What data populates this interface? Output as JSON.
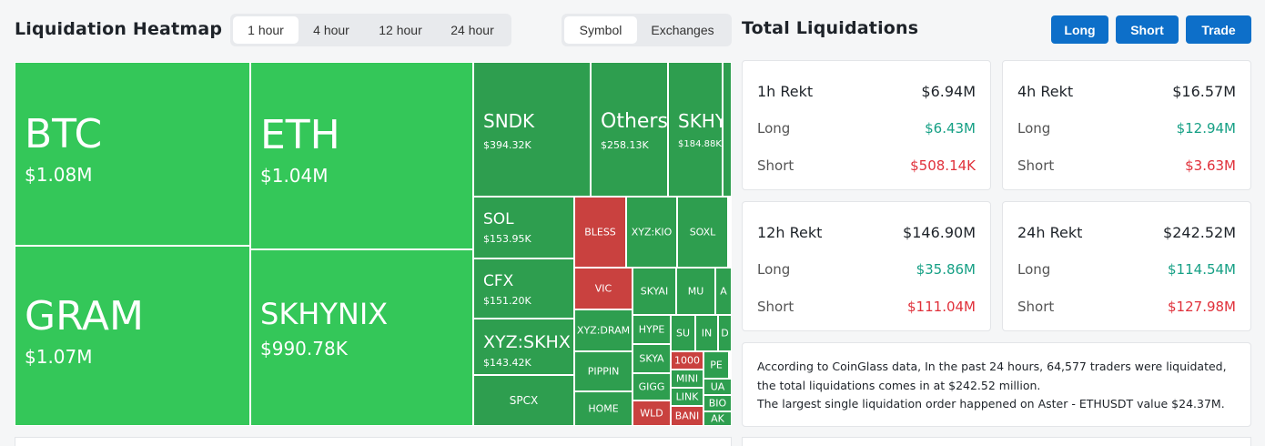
{
  "header": {
    "title": "Liquidation Heatmap",
    "time_options": [
      "1 hour",
      "4 hour",
      "12 hour",
      "24 hour"
    ],
    "time_selected": "1 hour",
    "group_options": [
      "Symbol",
      "Exchanges"
    ],
    "group_selected": "Symbol"
  },
  "summary": {
    "title": "Total Liquidations",
    "buttons": [
      "Long",
      "Short",
      "Trade"
    ]
  },
  "cards": [
    {
      "title": "1h Rekt",
      "total": "$6.94M",
      "long_label": "Long",
      "long": "$6.43M",
      "short_label": "Short",
      "short": "$508.14K"
    },
    {
      "title": "4h Rekt",
      "total": "$16.57M",
      "long_label": "Long",
      "long": "$12.94M",
      "short_label": "Short",
      "short": "$3.63M"
    },
    {
      "title": "12h Rekt",
      "total": "$146.90M",
      "long_label": "Long",
      "long": "$35.86M",
      "short_label": "Short",
      "short": "$111.04M"
    },
    {
      "title": "24h Rekt",
      "total": "$242.52M",
      "long_label": "Long",
      "long": "$114.54M",
      "short_label": "Short",
      "short": "$127.98M"
    }
  ],
  "info": {
    "line1": "According to CoinGlass data, In the past 24 hours, 64,577 traders were liquidated, the total liquidations comes in at $242.52 million.",
    "line2": "The largest single liquidation order happened on Aster - ETHUSDT value $24.37M."
  },
  "colors": {
    "long_green": "#34c759",
    "mid_green": "#2e9e4f",
    "dark_green": "#2b8f47",
    "short_red": "#c9413f",
    "accent_blue": "#0d6fc9"
  },
  "heatmap": [
    {
      "symbol": "BTC",
      "value": "$1.08M",
      "side": "long"
    },
    {
      "symbol": "GRAM",
      "value": "$1.07M",
      "side": "long"
    },
    {
      "symbol": "ETH",
      "value": "$1.04M",
      "side": "long"
    },
    {
      "symbol": "SKHYNIX",
      "value": "$990.78K",
      "side": "long"
    },
    {
      "symbol": "SNDK",
      "value": "$394.32K",
      "side": "long"
    },
    {
      "symbol": "Others",
      "value": "$258.13K",
      "side": "long"
    },
    {
      "symbol": "SKHY",
      "value": "$184.88K",
      "side": "long"
    },
    {
      "symbol": "SOL",
      "value": "$153.95K",
      "side": "long"
    },
    {
      "symbol": "CFX",
      "value": "$151.20K",
      "side": "long"
    },
    {
      "symbol": "XYZ:SKHX",
      "value": "$143.42K",
      "side": "long"
    },
    {
      "symbol": "SPCX",
      "value": "",
      "side": "long"
    },
    {
      "symbol": "BLESS",
      "value": "",
      "side": "short"
    },
    {
      "symbol": "XYZ:KIO",
      "value": "",
      "side": "long"
    },
    {
      "symbol": "SOXL",
      "value": "",
      "side": "long"
    },
    {
      "symbol": "VIC",
      "value": "",
      "side": "short"
    },
    {
      "symbol": "SKYAI",
      "value": "",
      "side": "long"
    },
    {
      "symbol": "MU",
      "value": "",
      "side": "long"
    },
    {
      "symbol": "A",
      "value": "",
      "side": "long"
    },
    {
      "symbol": "XYZ:DRAM",
      "value": "",
      "side": "long"
    },
    {
      "symbol": "HYPE",
      "value": "",
      "side": "long"
    },
    {
      "symbol": "SU",
      "value": "",
      "side": "long"
    },
    {
      "symbol": "IN",
      "value": "",
      "side": "long"
    },
    {
      "symbol": "D",
      "value": "",
      "side": "long"
    },
    {
      "symbol": "PIPPIN",
      "value": "",
      "side": "long"
    },
    {
      "symbol": "SKYA",
      "value": "",
      "side": "long"
    },
    {
      "symbol": "1000",
      "value": "",
      "side": "short"
    },
    {
      "symbol": "PE",
      "value": "",
      "side": "long"
    },
    {
      "symbol": "GIGG",
      "value": "",
      "side": "long"
    },
    {
      "symbol": "MINI",
      "value": "",
      "side": "long"
    },
    {
      "symbol": "UA",
      "value": "",
      "side": "long"
    },
    {
      "symbol": "HOME",
      "value": "",
      "side": "long"
    },
    {
      "symbol": "LINK",
      "value": "",
      "side": "long"
    },
    {
      "symbol": "BIO",
      "value": "",
      "side": "long"
    },
    {
      "symbol": "WLD",
      "value": "",
      "side": "short"
    },
    {
      "symbol": "BANI",
      "value": "",
      "side": "short"
    },
    {
      "symbol": "AK",
      "value": "",
      "side": "long"
    }
  ]
}
